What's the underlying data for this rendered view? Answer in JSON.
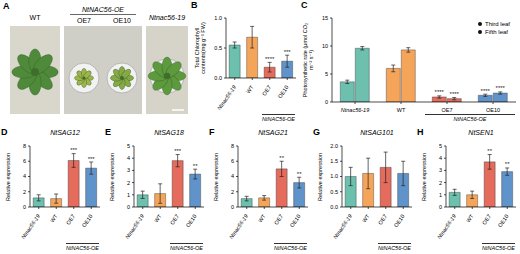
{
  "chart_data": [
    {
      "type": "image",
      "panel_label": "A",
      "labels": [
        "WT",
        "NtNAC56-OE",
        "Ntnac56-19"
      ],
      "sub_labels": [
        "OE7",
        "OE10"
      ]
    },
    {
      "type": "bar",
      "panel_label": "B",
      "y_label": "Total Chlorophyll contents(mg g⁻¹ FW)",
      "categories": [
        "Ntnac56-19",
        "WT",
        "OE7",
        "OE10"
      ],
      "group_label": "NtNAC56-OE",
      "colors": [
        "#6dbfae",
        "#f5a55a",
        "#e56b5d",
        "#5f93c9"
      ],
      "values": [
        0.55,
        0.68,
        0.18,
        0.28
      ],
      "errors": [
        0.05,
        0.18,
        0.08,
        0.1
      ],
      "significance": [
        null,
        null,
        "****",
        "***"
      ],
      "ylim": [
        0,
        1
      ],
      "yticks": [
        {
          "value": 0,
          "label": "0.0"
        },
        {
          "value": 0.5,
          "label": "0.5"
        },
        {
          "value": 1,
          "label": "1.0"
        }
      ]
    },
    {
      "type": "bar",
      "panel_label": "C",
      "y_label": "Photosynthetic rate (μmol CO₂ m⁻² s⁻¹)",
      "categories": [
        "Ntnac56-19",
        "WT",
        "OE7",
        "OE10"
      ],
      "group_label": "NtNAC56-OE",
      "colors": [
        "#6dbfae",
        "#f5a55a",
        "#e56b5d",
        "#5f93c9"
      ],
      "legend": "upper right",
      "series": [
        {
          "name": "Third leaf",
          "values": [
            3.6,
            6.0,
            0.9,
            1.2
          ],
          "errors": [
            0.3,
            0.6,
            0.2,
            0.2
          ],
          "significance": [
            null,
            null,
            "****",
            "****"
          ]
        },
        {
          "name": "Fifth leaf",
          "values": [
            9.6,
            9.3,
            0.6,
            1.6
          ],
          "errors": [
            0.3,
            0.4,
            0.2,
            0.2
          ],
          "significance": [
            null,
            null,
            "****",
            "****"
          ]
        }
      ],
      "ylim": [
        0,
        15
      ],
      "yticks": [
        0,
        5,
        10,
        15
      ]
    },
    {
      "type": "bar",
      "panel_label": "D",
      "title": "NtSAG12",
      "y_label": "Relative expression",
      "categories": [
        "Ntnac56-19",
        "WT",
        "OE7",
        "OE10"
      ],
      "group_label": "NtNAC56-OE",
      "colors": [
        "#6dbfae",
        "#f5a55a",
        "#e56b5d",
        "#5f93c9"
      ],
      "values": [
        1.2,
        1.1,
        6.1,
        5.1
      ],
      "errors": [
        0.4,
        0.6,
        0.9,
        0.8
      ],
      "significance": [
        null,
        null,
        "***",
        "***"
      ],
      "ylim": [
        0,
        8
      ],
      "yticks": [
        0,
        2,
        4,
        6,
        8
      ]
    },
    {
      "type": "bar",
      "panel_label": "E",
      "title": "NtSAG18",
      "y_label": "Relative expression",
      "categories": [
        "Ntnac56-19",
        "WT",
        "OE7",
        "OE10"
      ],
      "group_label": "NtNAC56-OE",
      "colors": [
        "#6dbfae",
        "#f5a55a",
        "#e56b5d",
        "#5f93c9"
      ],
      "values": [
        1.0,
        1.1,
        3.8,
        2.7
      ],
      "errors": [
        0.3,
        0.8,
        0.5,
        0.4
      ],
      "significance": [
        null,
        null,
        "***",
        "**"
      ],
      "ylim": [
        0,
        5
      ],
      "yticks": [
        0,
        1,
        2,
        3,
        4,
        5
      ]
    },
    {
      "type": "bar",
      "panel_label": "F",
      "title": "NtSAG21",
      "y_label": "Relative expression",
      "categories": [
        "Ntnac56-19",
        "WT",
        "OE7",
        "OE10"
      ],
      "group_label": "NtNAC56-OE",
      "colors": [
        "#6dbfae",
        "#f5a55a",
        "#e56b5d",
        "#5f93c9"
      ],
      "values": [
        1.1,
        1.2,
        5.0,
        3.2
      ],
      "errors": [
        0.3,
        0.3,
        1.0,
        0.7
      ],
      "significance": [
        null,
        null,
        "**",
        "**"
      ],
      "ylim": [
        0,
        8
      ],
      "yticks": [
        0,
        2,
        4,
        6,
        8
      ]
    },
    {
      "type": "bar",
      "panel_label": "G",
      "title": "NtSAG101",
      "y_label": "Relative expression",
      "categories": [
        "Ntnac56-19",
        "WT",
        "OE7",
        "OE10"
      ],
      "group_label": "NtNAC56-OE",
      "colors": [
        "#6dbfae",
        "#f5a55a",
        "#e56b5d",
        "#5f93c9"
      ],
      "values": [
        1.0,
        1.1,
        1.3,
        1.1
      ],
      "errors": [
        0.3,
        0.5,
        0.5,
        0.4
      ],
      "significance": [
        null,
        null,
        null,
        null
      ],
      "ylim": [
        0,
        2
      ],
      "yticks": [
        {
          "value": 0,
          "label": "0.0"
        },
        {
          "value": 0.5,
          "label": "0.5"
        },
        {
          "value": 1,
          "label": "1.0"
        },
        {
          "value": 1.5,
          "label": "1.5"
        },
        {
          "value": 2,
          "label": "2.0"
        }
      ]
    },
    {
      "type": "bar",
      "panel_label": "H",
      "title": "NtSEN1",
      "y_label": "Relative expression",
      "categories": [
        "Ntnac56-19",
        "WT",
        "OE7",
        "OE10"
      ],
      "group_label": "NtNAC56-OE",
      "colors": [
        "#6dbfae",
        "#f5a55a",
        "#e56b5d",
        "#5f93c9"
      ],
      "values": [
        1.2,
        1.0,
        3.7,
        2.9
      ],
      "errors": [
        0.25,
        0.3,
        0.6,
        0.3
      ],
      "significance": [
        null,
        null,
        "**",
        "**"
      ],
      "ylim": [
        0,
        5
      ],
      "yticks": [
        0,
        1,
        2,
        3,
        4,
        5
      ]
    }
  ]
}
